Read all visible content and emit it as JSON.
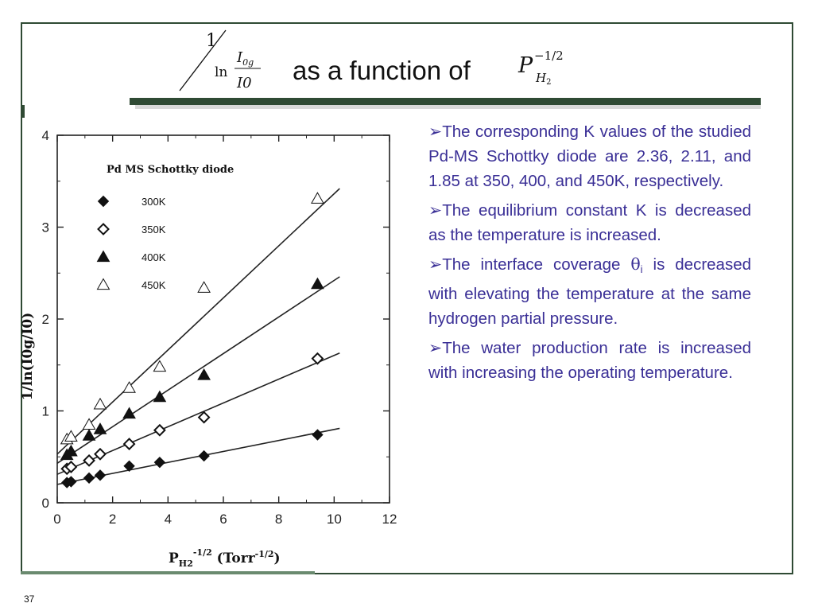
{
  "slide": {
    "title": {
      "formula_num": "1",
      "formula_ln": "ln",
      "formula_frac_top": "I",
      "formula_frac_top_sub": "0g",
      "formula_frac_bottom": "I0",
      "text": "as a function of",
      "px_symbol": "P",
      "px_sub": "H",
      "px_sub2": "2",
      "px_exp": "−1/2"
    },
    "bullets": [
      {
        "marker": "➢",
        "text": "The corresponding K values of the studied Pd-MS Schottky diode are 2.36, 2.11, and 1.85 at 350, 400, and 450K, respectively."
      },
      {
        "marker": "➢",
        "text": "The equilibrium constant K is decreased as the temperature is increased."
      },
      {
        "marker": "➢",
        "text_before": "The interface coverage ",
        "theta": "θ",
        "theta_sub": "i",
        "text_after": " is decreased with elevating the temperature at the same hydrogen partial pressure."
      },
      {
        "marker": "➢",
        "text": "The water production rate is increased with increasing the operating temperature."
      }
    ],
    "page_number": "37"
  },
  "chart_data": {
    "type": "scatter",
    "title": "Pd MS Schottky diode",
    "xlabel_main": "P",
    "xlabel_sub": "H2",
    "xlabel_sup": "-1/2",
    "xlabel_unit": " (Torr",
    "xlabel_unit_sup": "-1/2",
    "xlabel_end": ")",
    "ylabel": "1/ln(I0g/I0)",
    "xlim": [
      0,
      12
    ],
    "ylim": [
      0,
      4
    ],
    "xticks": [
      "0",
      "2",
      "4",
      "6",
      "8",
      "10",
      "12"
    ],
    "yticks": [
      "0",
      "1",
      "2",
      "3",
      "4"
    ],
    "legend_position": "top-left",
    "series": [
      {
        "name": "300K",
        "marker": "diamond-filled",
        "x": [
          0.35,
          0.5,
          1.15,
          1.55,
          2.6,
          3.7,
          5.3,
          9.4
        ],
        "y": [
          0.22,
          0.23,
          0.27,
          0.3,
          0.4,
          0.44,
          0.51,
          0.74
        ],
        "fit_x": [
          0,
          10.2
        ],
        "fit_y": [
          0.2,
          0.81
        ]
      },
      {
        "name": "350K",
        "marker": "diamond-open",
        "x": [
          0.35,
          0.5,
          1.15,
          1.55,
          2.6,
          3.7,
          5.3,
          9.4
        ],
        "y": [
          0.37,
          0.39,
          0.46,
          0.53,
          0.64,
          0.79,
          0.93,
          1.57
        ],
        "fit_x": [
          0,
          10.2
        ],
        "fit_y": [
          0.31,
          1.63
        ]
      },
      {
        "name": "400K",
        "marker": "triangle-filled",
        "x": [
          0.35,
          0.5,
          1.15,
          1.55,
          2.6,
          3.7,
          5.3,
          9.4
        ],
        "y": [
          0.52,
          0.56,
          0.73,
          0.8,
          0.97,
          1.15,
          1.39,
          2.38
        ],
        "fit_x": [
          0,
          10.2
        ],
        "fit_y": [
          0.43,
          2.46
        ]
      },
      {
        "name": "450K",
        "marker": "triangle-open",
        "x": [
          0.35,
          0.5,
          1.15,
          1.55,
          2.6,
          3.7,
          5.3,
          9.4
        ],
        "y": [
          0.69,
          0.72,
          0.85,
          1.07,
          1.25,
          1.48,
          2.34,
          3.31
        ],
        "fit_x": [
          0,
          10.2
        ],
        "fit_y": [
          0.53,
          3.42
        ]
      }
    ]
  }
}
